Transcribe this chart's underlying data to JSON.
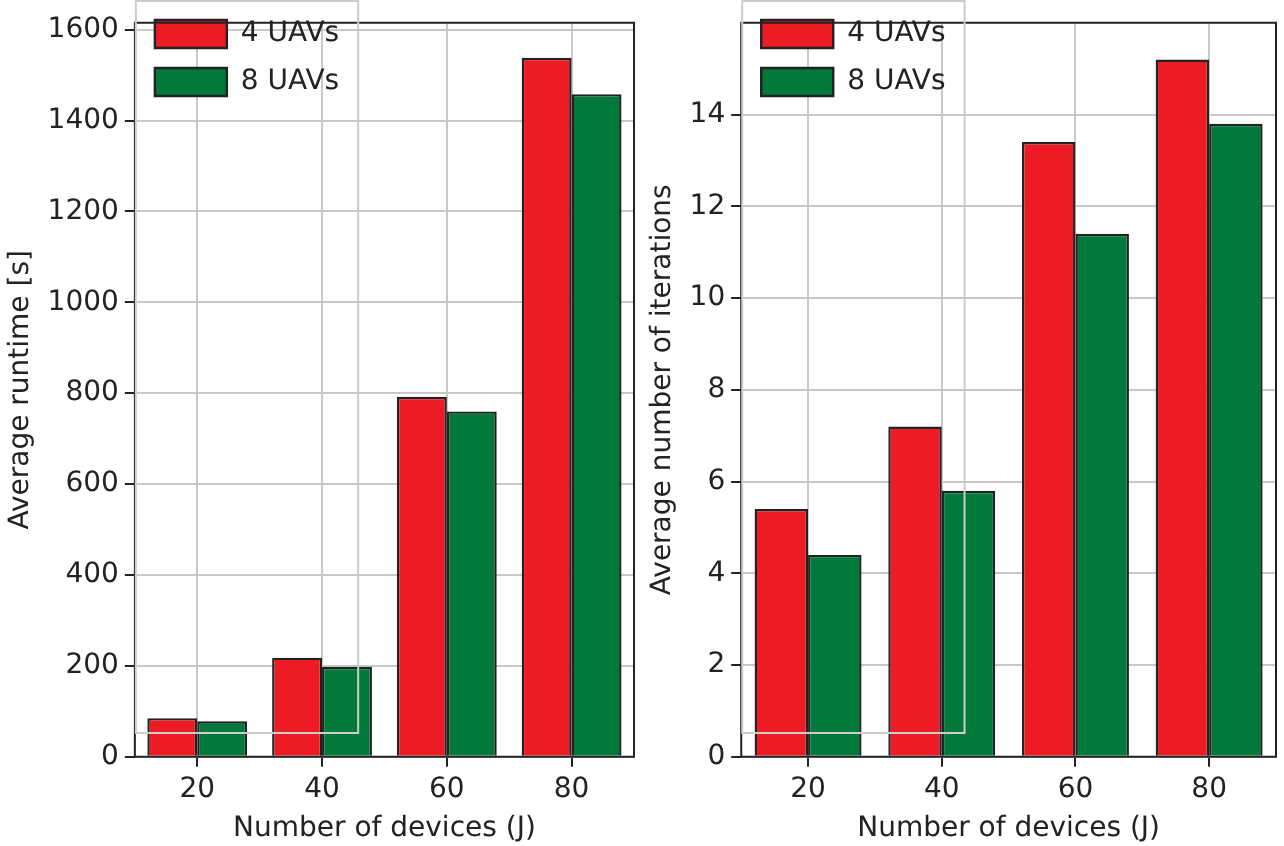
{
  "chart_data": [
    {
      "type": "bar",
      "xlabel": "Number of devices (J)",
      "ylabel": "Average runtime [s]",
      "categories": [
        "20",
        "40",
        "60",
        "80"
      ],
      "series": [
        {
          "name": "4 UAVs",
          "color": "#ed1c24",
          "values": [
            85,
            218,
            792,
            1538
          ]
        },
        {
          "name": "8 UAVs",
          "color": "#00793a",
          "values": [
            78,
            198,
            760,
            1458
          ]
        }
      ],
      "ylim": [
        0,
        1615
      ],
      "yticks": [
        0,
        200,
        400,
        600,
        800,
        1000,
        1200,
        1400,
        1600
      ],
      "grid": true,
      "legend": "top left"
    },
    {
      "type": "bar",
      "xlabel": "Number of devices (J)",
      "ylabel": "Average number of iterations",
      "categories": [
        "20",
        "40",
        "60",
        "80"
      ],
      "series": [
        {
          "name": "4 UAVs",
          "color": "#ed1c24",
          "values": [
            5.4,
            7.2,
            13.4,
            15.2
          ]
        },
        {
          "name": "8 UAVs",
          "color": "#00793a",
          "values": [
            4.4,
            5.8,
            11.4,
            13.8
          ]
        }
      ],
      "ylim": [
        0,
        16
      ],
      "yticks": [
        0,
        2,
        4,
        6,
        8,
        10,
        12,
        14
      ],
      "grid": true,
      "legend": "top left"
    }
  ]
}
